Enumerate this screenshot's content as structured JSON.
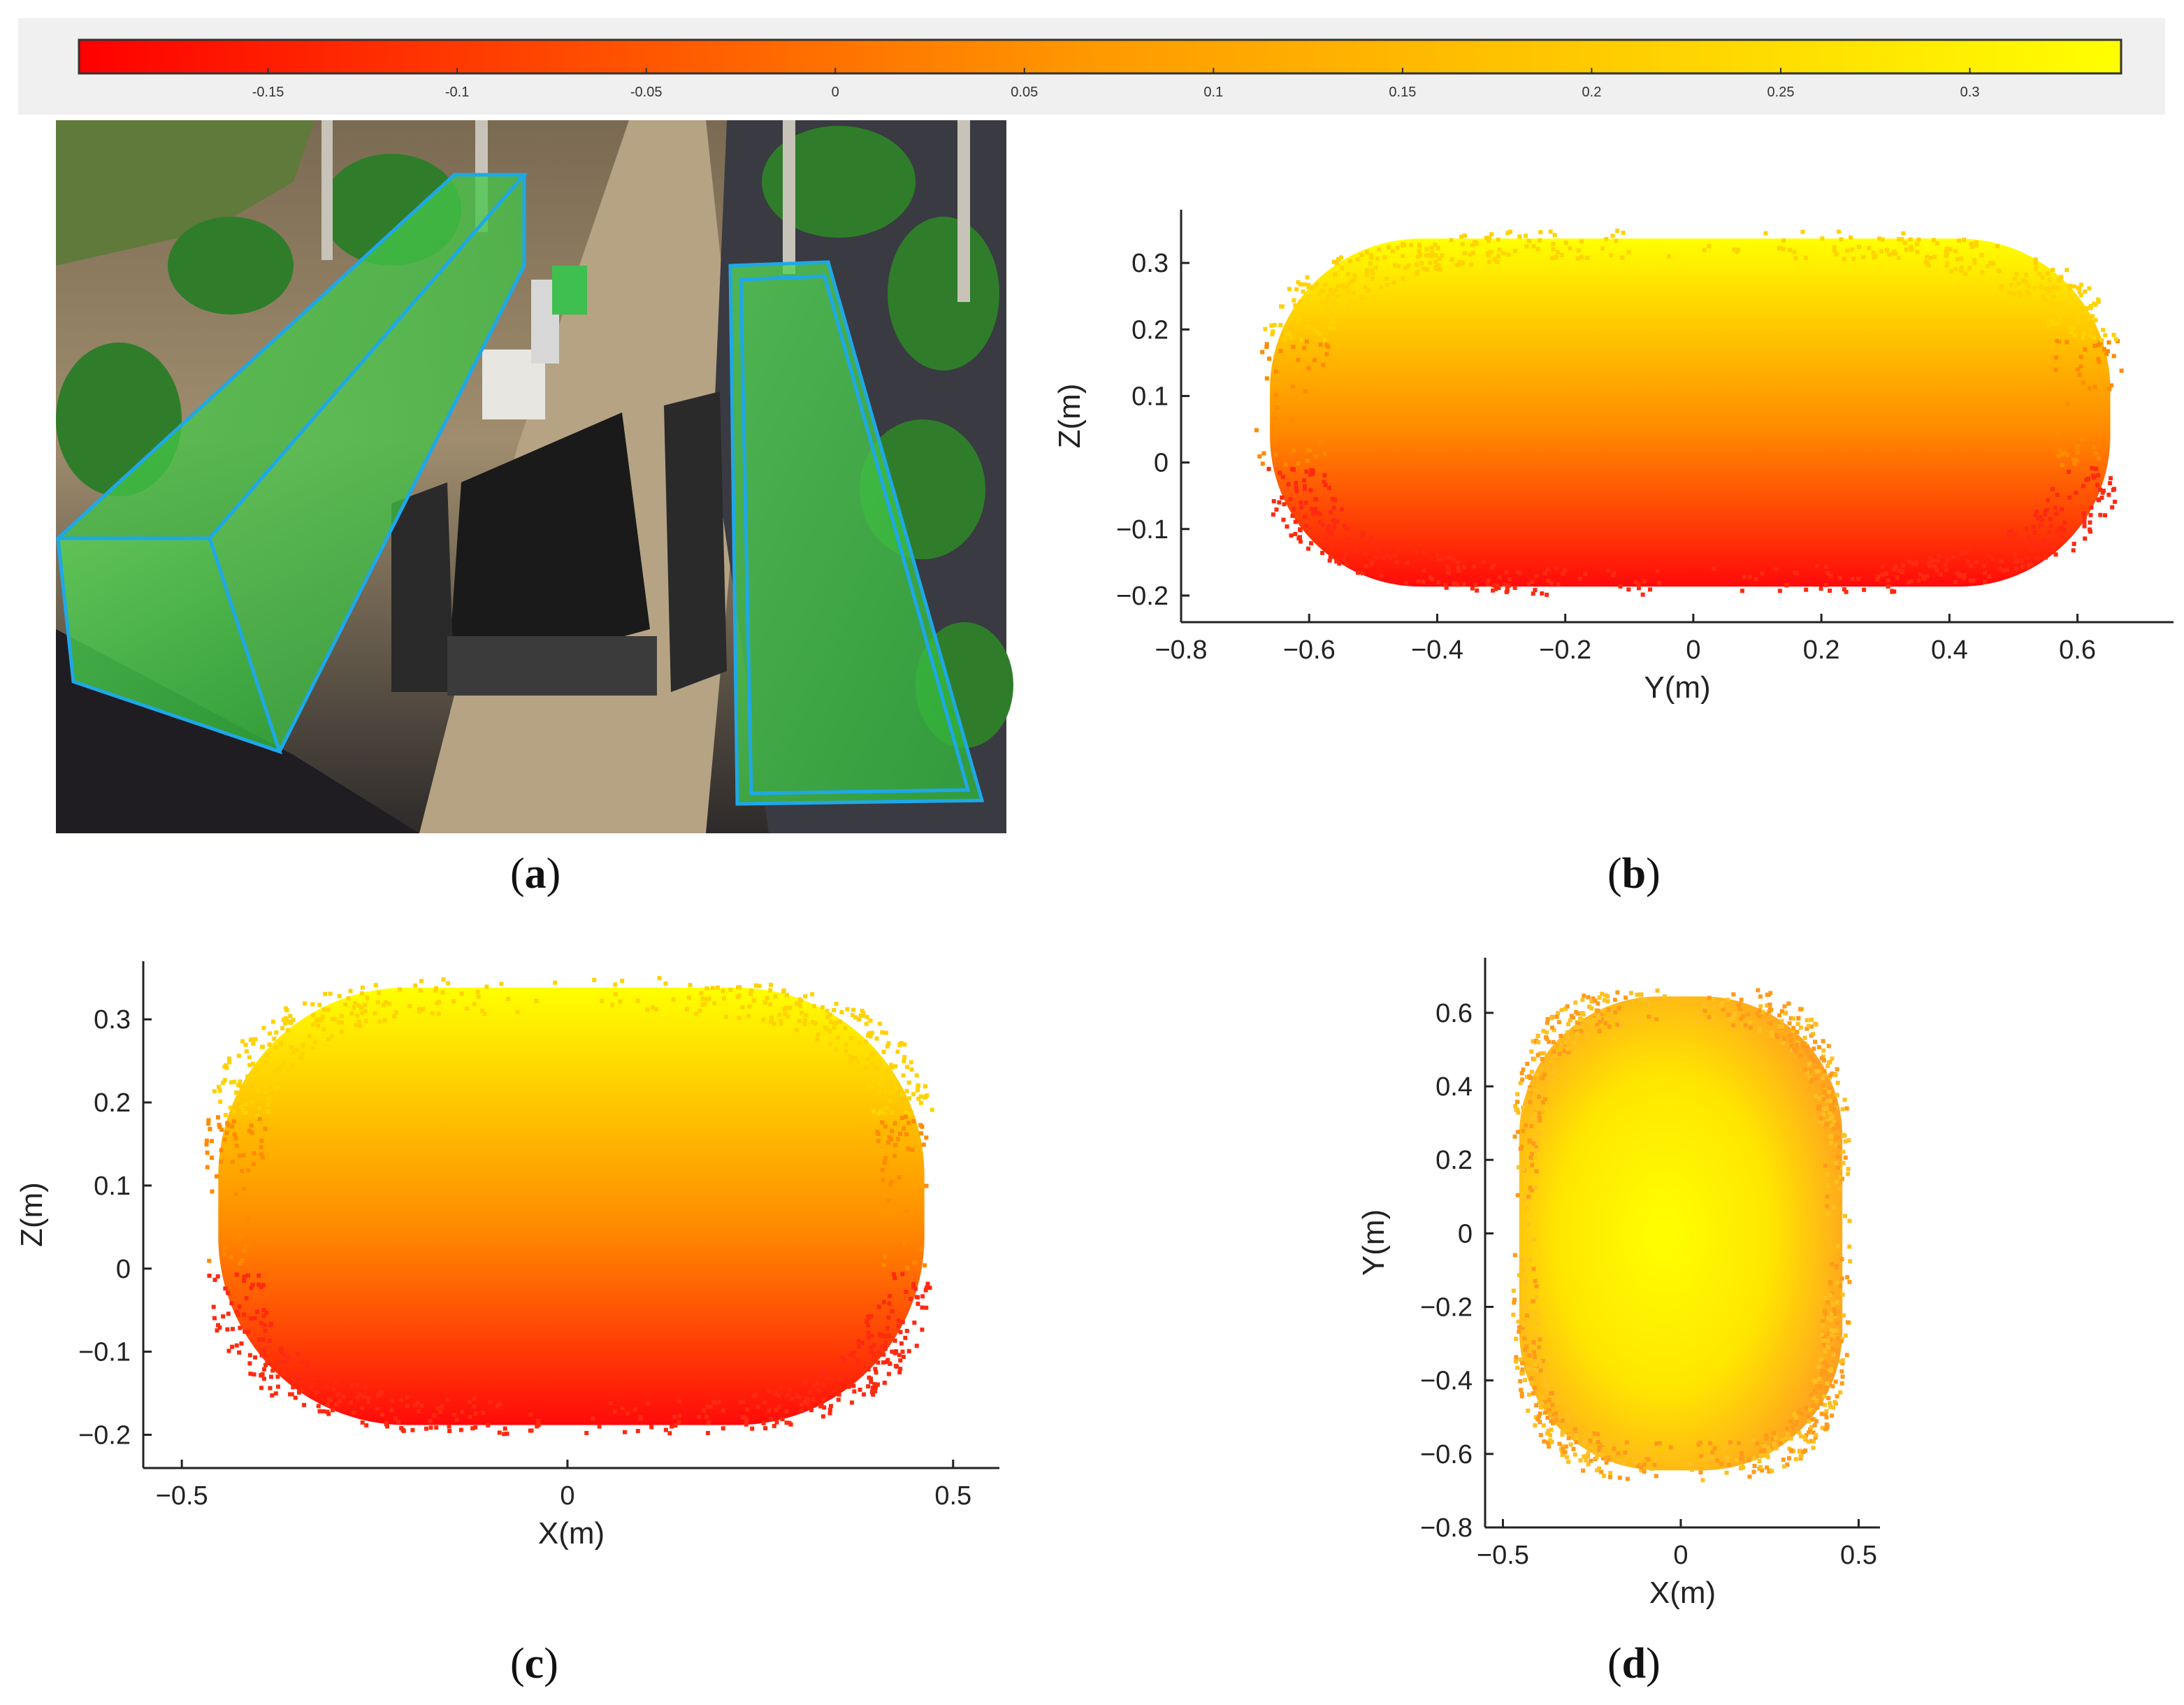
{
  "colorbar": {
    "ticks": [
      "-0.15",
      "-0.1",
      "-0.05",
      "0",
      "0.05",
      "0.1",
      "0.15",
      "0.2",
      "0.25",
      "0.3"
    ],
    "range": [
      -0.2,
      0.34
    ],
    "colors": {
      "low": "#ff0000",
      "mid": "#ff9a00",
      "high": "#ffff00"
    }
  },
  "panels": {
    "a": {
      "caption_letter": "a",
      "description_labels": []
    },
    "b": {
      "caption_letter": "b"
    },
    "c": {
      "caption_letter": "c"
    },
    "d": {
      "caption_letter": "d"
    }
  },
  "chart_data": [
    {
      "panel": "b",
      "type": "scatter",
      "title": "",
      "xlabel": "Y(m)",
      "ylabel": "Z(m)",
      "xlim": [
        -0.8,
        0.75
      ],
      "ylim": [
        -0.24,
        0.38
      ],
      "xticks": [
        "-0.8",
        "-0.6",
        "-0.4",
        "-0.2",
        "0",
        "0.2",
        "0.4",
        "0.6"
      ],
      "yticks": [
        "-0.2",
        "-0.1",
        "0",
        "0.1",
        "0.2",
        "0.3"
      ],
      "xtick_values": [
        -0.8,
        -0.6,
        -0.4,
        -0.2,
        0,
        0.2,
        0.4,
        0.6
      ],
      "ytick_values": [
        -0.2,
        -0.1,
        0,
        0.1,
        0.2,
        0.3
      ],
      "point_cloud": {
        "center": [
          -0.005,
          0.075
        ],
        "x_extent": [
          -0.67,
          0.66
        ],
        "y_extent": [
          -0.195,
          0.345
        ],
        "color_by": "Z"
      }
    },
    {
      "panel": "c",
      "type": "scatter",
      "title": "",
      "xlabel": "X(m)",
      "ylabel": "Z(m)",
      "xlim": [
        -0.55,
        0.56
      ],
      "ylim": [
        -0.24,
        0.37
      ],
      "xticks": [
        "-0.5",
        "0",
        "0.5"
      ],
      "yticks": [
        "-0.2",
        "-0.1",
        "0",
        "0.1",
        "0.2",
        "0.3"
      ],
      "xtick_values": [
        -0.5,
        0,
        0.5
      ],
      "ytick_values": [
        -0.2,
        -0.1,
        0,
        0.1,
        0.2,
        0.3
      ],
      "point_cloud": {
        "center": [
          0.0,
          0.075
        ],
        "x_extent": [
          -0.46,
          0.47
        ],
        "y_extent": [
          -0.195,
          0.345
        ],
        "color_by": "Z"
      }
    },
    {
      "panel": "d",
      "type": "scatter",
      "title": "",
      "xlabel": "X(m)",
      "ylabel": "Y(m)",
      "xlim": [
        -0.55,
        0.56
      ],
      "ylim": [
        -0.8,
        0.75
      ],
      "xticks": [
        "-0.5",
        "0",
        "0.5"
      ],
      "yticks": [
        "-0.8",
        "-0.6",
        "-0.4",
        "-0.2",
        "0",
        "0.2",
        "0.4",
        "0.6"
      ],
      "xtick_values": [
        -0.5,
        0,
        0.5
      ],
      "ytick_values": [
        -0.8,
        -0.6,
        -0.4,
        -0.2,
        0,
        0.2,
        0.4,
        0.6
      ],
      "point_cloud": {
        "center": [
          0.0,
          0.0
        ],
        "x_extent": [
          -0.47,
          0.47
        ],
        "y_extent": [
          -0.66,
          0.66
        ],
        "color_by": "Z"
      }
    }
  ]
}
